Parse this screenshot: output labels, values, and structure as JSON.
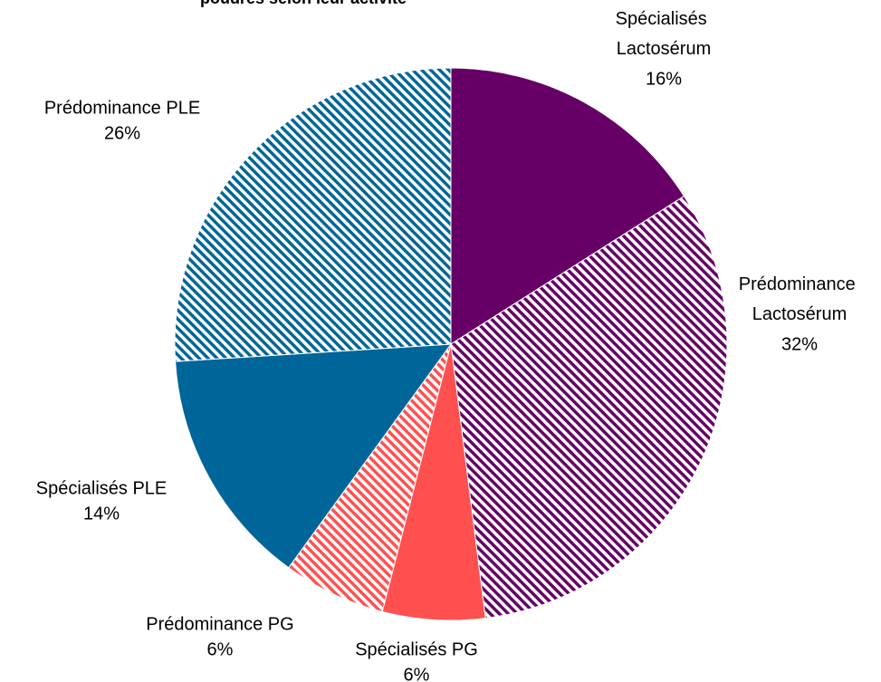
{
  "chart_data": {
    "type": "pie",
    "title": "poudres selon leur activité",
    "categories": [
      "Spécialisés Lactosérum",
      "Prédominance Lactosérum",
      "Spécialisés PG",
      "Prédominance PG",
      "Spécialisés PLE",
      "Prédominance PLE"
    ],
    "values": [
      16,
      32,
      6,
      6,
      14,
      26
    ],
    "value_labels": [
      "16%",
      "32%",
      "6%",
      "6%",
      "14%",
      "26%"
    ],
    "colors": [
      "#660066",
      "#660066",
      "#ff5050",
      "#ff5050",
      "#006699",
      "#006699"
    ],
    "fills": [
      "solid",
      "hatch",
      "solid",
      "hatch",
      "solid",
      "hatch"
    ]
  }
}
